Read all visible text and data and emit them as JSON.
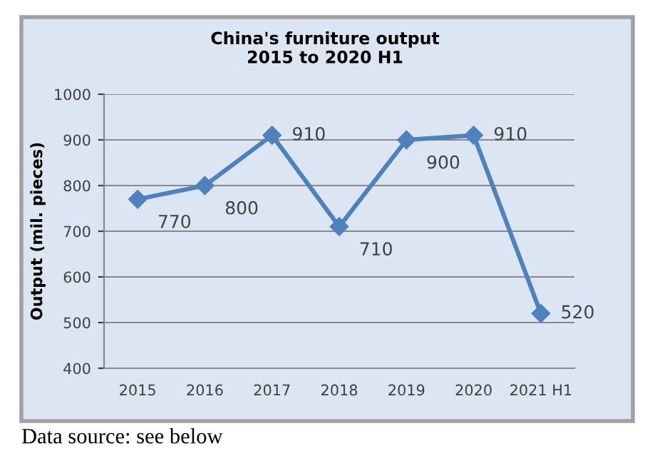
{
  "chart_data": {
    "type": "line",
    "title": "China's furniture output\n2015 to 2020 H1",
    "ylabel": "Output (mil. pieces)",
    "categories": [
      "2015",
      "2016",
      "2017",
      "2018",
      "2019",
      "2020",
      "2021 H1"
    ],
    "series": [
      {
        "color": "#4f81bd",
        "values": [
          770,
          800,
          910,
          710,
          900,
          910,
          520
        ]
      }
    ],
    "ylim": [
      400,
      1000
    ],
    "yticks": [
      400,
      500,
      600,
      700,
      800,
      900,
      1000
    ],
    "grid": "y",
    "marker": "diamond",
    "line_style": "solid",
    "data_labels": true,
    "annotations": [
      "Data source: see below"
    ]
  }
}
